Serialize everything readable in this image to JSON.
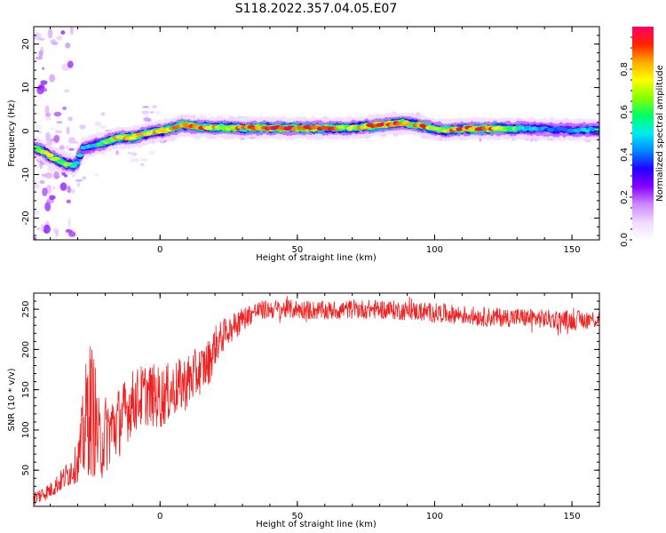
{
  "title": "S118.2022.357.04.05.E07",
  "colors": {
    "snr_line": "#ee2222",
    "background": "#ffffff",
    "colormap": [
      "#ffffff",
      "#f0d8ff",
      "#cc88ff",
      "#8800ff",
      "#2200ff",
      "#0088ff",
      "#00eeee",
      "#00ff66",
      "#88ff00",
      "#ffff00",
      "#ffaa00",
      "#ff2200",
      "#ff0066"
    ]
  },
  "chart_data": [
    {
      "type": "heatmap",
      "title": "",
      "xlabel": "Height of straight line (km)",
      "ylabel": "Frequency (Hz)",
      "xlim": [
        -46,
        160
      ],
      "ylim": [
        -25,
        24
      ],
      "x_ticks": [
        0,
        50,
        100,
        150
      ],
      "x_tick_labels": [
        "0",
        "50",
        "100",
        "150"
      ],
      "y_ticks": [
        -20,
        -10,
        0,
        10,
        20
      ],
      "y_tick_labels": [
        "-20",
        "-10",
        "0",
        "10",
        "20"
      ],
      "grid": false,
      "colorbar": {
        "label": "Normalized spectral amplitude",
        "range": [
          0,
          1
        ],
        "ticks": [
          0.0,
          0.2,
          0.4,
          0.6,
          0.8
        ],
        "tick_labels": [
          "0.0",
          "0.2",
          "0.4",
          "0.6",
          "0.8"
        ]
      },
      "ridge": {
        "x": [
          -45,
          -42,
          -38,
          -34,
          -31,
          -28,
          -25,
          -20,
          -15,
          -10,
          -5,
          0,
          5,
          8,
          12,
          20,
          30,
          40,
          50,
          60,
          70,
          80,
          88,
          92,
          96,
          100,
          105,
          110,
          120,
          130,
          140,
          150,
          160
        ],
        "frequency_hz": [
          -4,
          -5,
          -6.5,
          -7.5,
          -8,
          -4,
          -3.5,
          -2.5,
          -1.5,
          -1.5,
          -0.5,
          0,
          0.5,
          1.5,
          1,
          0.8,
          0.7,
          0.7,
          0.7,
          0.7,
          0.8,
          1.3,
          1.8,
          1.6,
          1.0,
          0.5,
          0.2,
          0.5,
          0.6,
          0.6,
          0.5,
          0.2,
          0.3
        ],
        "amplitude": [
          0.6,
          0.7,
          0.7,
          0.65,
          0.5,
          0.45,
          0.45,
          0.6,
          0.8,
          0.85,
          0.7,
          0.8,
          0.85,
          0.9,
          0.9,
          0.75,
          0.8,
          0.95,
          0.95,
          0.9,
          0.7,
          0.95,
          0.85,
          0.7,
          0.95,
          0.6,
          0.8,
          0.85,
          0.95,
          0.6,
          0.4,
          0.45,
          0.5
        ]
      }
    },
    {
      "type": "line",
      "title": "",
      "xlabel": "Height of straight line (km)",
      "ylabel": "SNR (10 * v/v)",
      "xlim": [
        -46,
        160
      ],
      "ylim": [
        5,
        270
      ],
      "x_ticks": [
        0,
        50,
        100,
        150
      ],
      "x_tick_labels": [
        "0",
        "50",
        "100",
        "150"
      ],
      "y_ticks": [
        50,
        100,
        150,
        200,
        250
      ],
      "y_tick_labels": [
        "50",
        "100",
        "150",
        "200",
        "250"
      ],
      "grid": false,
      "series": [
        {
          "x": [
            -46,
            -40,
            -35,
            -30,
            -28,
            -26,
            -24,
            -22,
            -20,
            -15,
            -10,
            -5,
            0,
            5,
            10,
            15,
            18,
            20,
            25,
            30,
            35,
            40,
            50,
            60,
            70,
            80,
            90,
            100,
            110,
            120,
            130,
            140,
            150,
            160
          ],
          "mean": [
            15,
            25,
            40,
            60,
            90,
            130,
            120,
            80,
            95,
            110,
            135,
            145,
            140,
            150,
            160,
            175,
            185,
            205,
            225,
            238,
            248,
            250,
            250,
            248,
            250,
            250,
            248,
            246,
            243,
            240,
            240,
            238,
            236,
            238
          ],
          "spread": [
            10,
            10,
            15,
            25,
            60,
            90,
            80,
            50,
            50,
            45,
            40,
            40,
            40,
            35,
            35,
            30,
            30,
            25,
            18,
            15,
            12,
            12,
            12,
            12,
            12,
            12,
            12,
            12,
            12,
            12,
            12,
            12,
            12,
            12
          ]
        }
      ]
    }
  ]
}
